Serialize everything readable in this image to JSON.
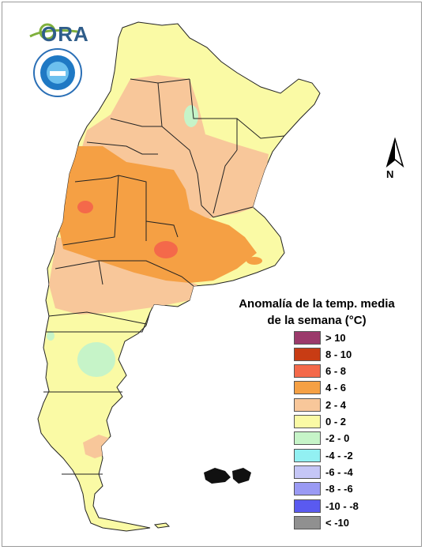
{
  "header": {
    "logo_text": "ORA"
  },
  "legend": {
    "title_line1": "Anomalía de la temp. media",
    "title_line2": "de la semana (°C)",
    "items": [
      {
        "label": "> 10",
        "color": "#9b3a6b"
      },
      {
        "label": "8 - 10",
        "color": "#c83c14"
      },
      {
        "label": "6 - 8",
        "color": "#f4694a"
      },
      {
        "label": "4 - 6",
        "color": "#f5a044"
      },
      {
        "label": "2 - 4",
        "color": "#f8c79a"
      },
      {
        "label": "0 - 2",
        "color": "#fafaa5"
      },
      {
        "label": "-2 - 0",
        "color": "#c6f4c8"
      },
      {
        "label": "-4 - -2",
        "color": "#92f0f2"
      },
      {
        "label": "-6 - -4",
        "color": "#c5c6f6"
      },
      {
        "label": "-8 - -6",
        "color": "#9a9af4"
      },
      {
        "label": "-10 - -8",
        "color": "#5a5af0"
      },
      {
        "label": "< -10",
        "color": "#909090"
      }
    ]
  },
  "compass": {
    "label": "N"
  }
}
